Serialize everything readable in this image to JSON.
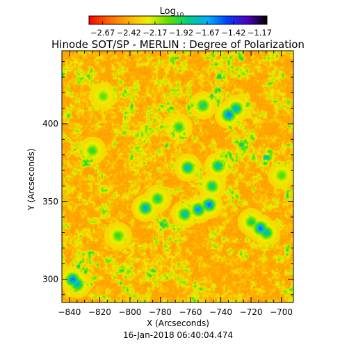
{
  "chart_data": {
    "type": "heatmap",
    "title": "Hinode SOT/SP - MERLIN : Degree of Polarization",
    "xlabel": "X (Arcseconds)",
    "ylabel": "Y (Arcseconds)",
    "footer": "16-Jan-2018 06:40:04.474",
    "xlim": [
      -845,
      -692
    ],
    "ylim": [
      285,
      447
    ],
    "xticks": [
      -840,
      -820,
      -800,
      -780,
      -760,
      -740,
      -720,
      -700
    ],
    "yticks": [
      300,
      350,
      400
    ],
    "colorbar": {
      "label": "Log",
      "label_sub": "10",
      "range": [
        -2.8,
        -1.1
      ],
      "ticks": [
        -2.67,
        -2.42,
        -2.17,
        -1.92,
        -1.67,
        -1.42,
        -1.17
      ],
      "tick_labels": [
        "−2.67",
        "−2.42",
        "−2.17",
        "−1.92",
        "−1.67",
        "−1.42",
        "−1.17"
      ],
      "colormap": [
        "#ff0000",
        "#ff6600",
        "#ffb000",
        "#f0f000",
        "#60e000",
        "#00d080",
        "#00b0ff",
        "#0040ff",
        "#5000c0",
        "#000000"
      ]
    },
    "field": {
      "background_range": [
        -2.55,
        -2.3
      ],
      "features": [
        {
          "x": -838,
          "y": 300,
          "value": -1.35
        },
        {
          "x": -835,
          "y": 297,
          "value": -1.55
        },
        {
          "x": -825,
          "y": 383,
          "value": -1.85
        },
        {
          "x": -818,
          "y": 418,
          "value": -1.95
        },
        {
          "x": -808,
          "y": 328,
          "value": -1.85
        },
        {
          "x": -790,
          "y": 346,
          "value": -1.5
        },
        {
          "x": -782,
          "y": 352,
          "value": -1.75
        },
        {
          "x": -768,
          "y": 398,
          "value": -1.8
        },
        {
          "x": -764,
          "y": 342,
          "value": -1.6
        },
        {
          "x": -762,
          "y": 372,
          "value": -1.55
        },
        {
          "x": -755,
          "y": 345,
          "value": -1.45
        },
        {
          "x": -752,
          "y": 412,
          "value": -1.7
        },
        {
          "x": -748,
          "y": 348,
          "value": -1.35
        },
        {
          "x": -746,
          "y": 360,
          "value": -1.7
        },
        {
          "x": -742,
          "y": 373,
          "value": -1.6
        },
        {
          "x": -735,
          "y": 406,
          "value": -1.35
        },
        {
          "x": -730,
          "y": 410,
          "value": -1.55
        },
        {
          "x": -720,
          "y": 337,
          "value": -1.8
        },
        {
          "x": -714,
          "y": 333,
          "value": -1.35
        },
        {
          "x": -710,
          "y": 330,
          "value": -1.6
        },
        {
          "x": -700,
          "y": 367,
          "value": -1.9
        }
      ]
    }
  }
}
